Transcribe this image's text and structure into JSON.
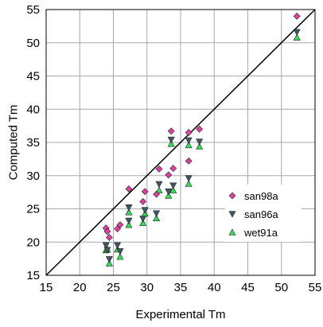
{
  "chart_data": {
    "type": "scatter",
    "title": "",
    "xlabel": "Experimental Tm",
    "ylabel": "Computed Tm",
    "xlim": [
      15,
      55
    ],
    "ylim": [
      15,
      55
    ],
    "xticks": [
      "15",
      "20",
      "25",
      "30",
      "35",
      "40",
      "45",
      "50",
      "55"
    ],
    "yticks": [
      "15",
      "20",
      "25",
      "30",
      "35",
      "40",
      "45",
      "50",
      "55"
    ],
    "grid": true,
    "legend_position": "right",
    "reference_line": {
      "from": [
        15,
        15
      ],
      "to": [
        55,
        55
      ],
      "color": "#000000"
    },
    "series": [
      {
        "name": "san98a",
        "marker": "diamond",
        "color": "#e040a0",
        "points": [
          [
            23.9,
            22.1
          ],
          [
            24.1,
            21.6
          ],
          [
            24.4,
            20.7
          ],
          [
            25.6,
            22.0
          ],
          [
            26.0,
            22.6
          ],
          [
            27.3,
            28.0
          ],
          [
            29.4,
            26.1
          ],
          [
            29.7,
            27.6
          ],
          [
            31.4,
            27.2
          ],
          [
            31.8,
            31.0
          ],
          [
            33.2,
            30.1
          ],
          [
            33.6,
            36.7
          ],
          [
            33.9,
            31.1
          ],
          [
            36.2,
            36.5
          ],
          [
            36.2,
            32.2
          ],
          [
            37.8,
            37.0
          ],
          [
            52.3,
            54.0
          ]
        ]
      },
      {
        "name": "san96a",
        "marker": "triangle-down",
        "color": "#3e5a60",
        "points": [
          [
            23.9,
            19.5
          ],
          [
            24.1,
            18.8
          ],
          [
            24.4,
            17.4
          ],
          [
            25.6,
            19.5
          ],
          [
            26.0,
            18.6
          ],
          [
            27.3,
            25.2
          ],
          [
            27.3,
            23.2
          ],
          [
            29.4,
            23.5
          ],
          [
            29.7,
            24.8
          ],
          [
            31.4,
            24.3
          ],
          [
            31.8,
            28.7
          ],
          [
            33.2,
            27.6
          ],
          [
            33.6,
            35.4
          ],
          [
            33.9,
            28.5
          ],
          [
            36.2,
            35.3
          ],
          [
            36.2,
            29.6
          ],
          [
            37.8,
            35.1
          ],
          [
            52.3,
            51.6
          ]
        ]
      },
      {
        "name": "wet91a",
        "marker": "triangle-up",
        "color": "#33e055",
        "points": [
          [
            23.9,
            18.8
          ],
          [
            24.1,
            18.9
          ],
          [
            24.4,
            16.8
          ],
          [
            25.6,
            18.9
          ],
          [
            26.0,
            17.8
          ],
          [
            27.3,
            24.5
          ],
          [
            27.3,
            22.6
          ],
          [
            29.4,
            22.9
          ],
          [
            29.7,
            24.3
          ],
          [
            31.4,
            23.6
          ],
          [
            31.8,
            27.8
          ],
          [
            33.2,
            27.0
          ],
          [
            33.6,
            34.8
          ],
          [
            33.9,
            27.8
          ],
          [
            36.2,
            34.6
          ],
          [
            36.2,
            28.8
          ],
          [
            37.8,
            34.4
          ],
          [
            52.3,
            50.8
          ]
        ]
      }
    ]
  }
}
